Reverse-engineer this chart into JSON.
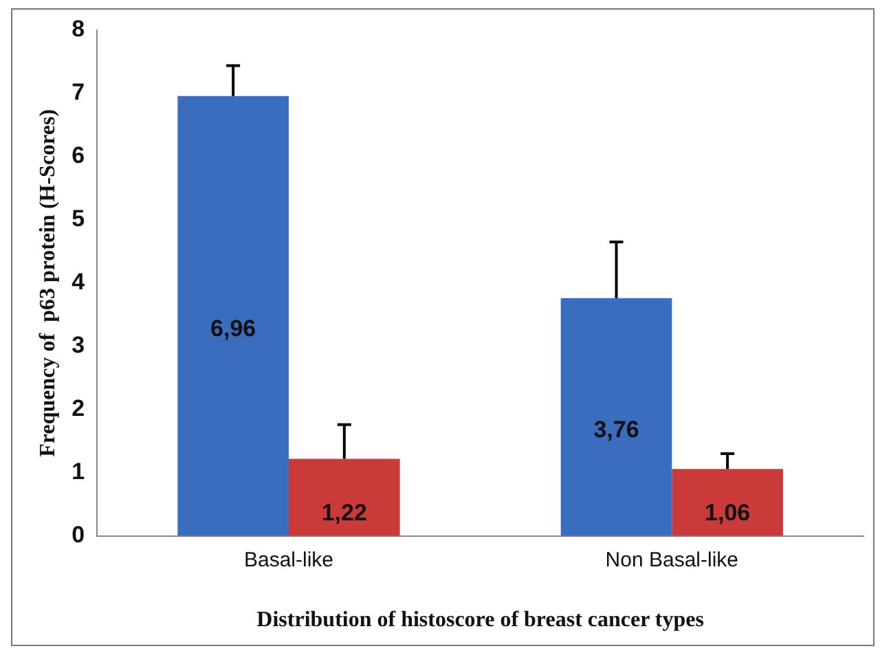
{
  "chart_data": {
    "type": "bar",
    "xlabel": "Distribution of histoscore of breast cancer types",
    "ylabel": "Frequency of  p63 protein (H-Scores)",
    "categories": [
      "Basal-like",
      "Non Basal-like"
    ],
    "series": [
      {
        "color": "#3a6dbd",
        "values": [
          6.96,
          3.76
        ],
        "value_labels": [
          "6,96",
          "3,76"
        ],
        "errors": [
          [
            6.96,
            7.44
          ],
          [
            3.76,
            4.65
          ]
        ]
      },
      {
        "color": "#c93a38",
        "values": [
          1.22,
          1.06
        ],
        "value_labels": [
          "1,22",
          "1,06"
        ],
        "errors": [
          [
            1.22,
            1.76
          ],
          [
            1.06,
            1.3
          ]
        ]
      }
    ],
    "ylim": [
      0,
      8
    ],
    "yticks": [
      0,
      1,
      2,
      3,
      4,
      5,
      6,
      7,
      8
    ],
    "grid": false,
    "legend": false
  }
}
